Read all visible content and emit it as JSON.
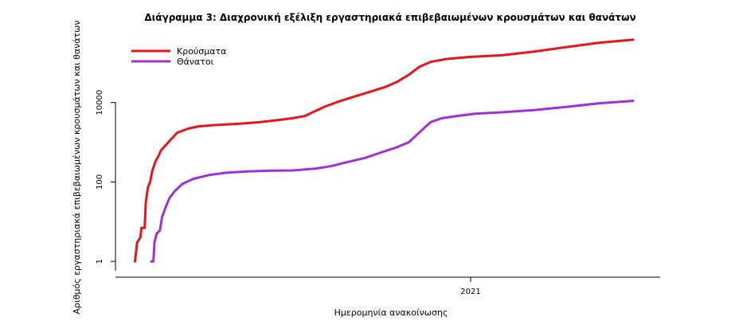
{
  "chart_data": {
    "type": "line",
    "title": "Διάγραμμα 3: Διαχρονική εξέλιξη εργαστηριακά επιβεβαιωμένων κρουσμάτων και θανάτων",
    "xlabel": "Ημερομηνία ανακοίνωσης",
    "ylabel": "Αριθμός εργαστηριακά επιβεβαιωμένων κρουσμάτων και θανάτων",
    "y_scale": "log10",
    "ylim": [
      0.4,
      600000
    ],
    "xlim": [
      "2020-02-08",
      "2021-06-25"
    ],
    "x_ticks": [
      {
        "date": "2021-01-01",
        "label": "2021"
      }
    ],
    "y_ticks": [
      {
        "value": 1,
        "label": "1"
      },
      {
        "value": 100,
        "label": "100"
      },
      {
        "value": 10000,
        "label": "10000"
      }
    ],
    "grid": false,
    "legend_position": "top-left",
    "series": [
      {
        "name": "Κρούσματα",
        "color": "#e8141b",
        "points": [
          [
            "2020-02-26",
            1
          ],
          [
            "2020-02-28",
            3
          ],
          [
            "2020-03-02",
            4
          ],
          [
            "2020-03-03",
            7
          ],
          [
            "2020-03-06",
            7
          ],
          [
            "2020-03-07",
            31
          ],
          [
            "2020-03-09",
            73
          ],
          [
            "2020-03-11",
            99
          ],
          [
            "2020-03-13",
            190
          ],
          [
            "2020-03-16",
            331
          ],
          [
            "2020-03-19",
            464
          ],
          [
            "2020-03-21",
            624
          ],
          [
            "2020-03-25",
            821
          ],
          [
            "2020-03-30",
            1156
          ],
          [
            "2020-04-05",
            1735
          ],
          [
            "2020-04-15",
            2192
          ],
          [
            "2020-04-25",
            2517
          ],
          [
            "2020-05-10",
            2710
          ],
          [
            "2020-06-01",
            2918
          ],
          [
            "2020-06-20",
            3200
          ],
          [
            "2020-07-10",
            3700
          ],
          [
            "2020-07-20",
            4000
          ],
          [
            "2020-08-01",
            4587
          ],
          [
            "2020-08-10",
            6000
          ],
          [
            "2020-08-20",
            8000
          ],
          [
            "2020-09-01",
            10500
          ],
          [
            "2020-09-15",
            14000
          ],
          [
            "2020-10-01",
            19000
          ],
          [
            "2020-10-15",
            25000
          ],
          [
            "2020-10-25",
            33000
          ],
          [
            "2020-11-05",
            50000
          ],
          [
            "2020-11-15",
            80000
          ],
          [
            "2020-11-25",
            105000
          ],
          [
            "2020-12-10",
            125000
          ],
          [
            "2020-12-31",
            140000
          ],
          [
            "2021-01-31",
            156000
          ],
          [
            "2021-02-28",
            190000
          ],
          [
            "2021-03-31",
            250000
          ],
          [
            "2021-04-30",
            320000
          ],
          [
            "2021-05-31",
            380000
          ]
        ]
      },
      {
        "name": "Θάνατοι",
        "color": "#9e31d6",
        "points": [
          [
            "2020-03-12",
            1
          ],
          [
            "2020-03-14",
            1
          ],
          [
            "2020-03-15",
            3
          ],
          [
            "2020-03-17",
            5
          ],
          [
            "2020-03-20",
            6
          ],
          [
            "2020-03-22",
            13
          ],
          [
            "2020-03-25",
            22
          ],
          [
            "2020-03-29",
            40
          ],
          [
            "2020-04-03",
            60
          ],
          [
            "2020-04-10",
            90
          ],
          [
            "2020-04-20",
            120
          ],
          [
            "2020-05-05",
            150
          ],
          [
            "2020-05-20",
            170
          ],
          [
            "2020-06-10",
            185
          ],
          [
            "2020-07-01",
            192
          ],
          [
            "2020-07-20",
            195
          ],
          [
            "2020-08-10",
            215
          ],
          [
            "2020-08-25",
            250
          ],
          [
            "2020-09-10",
            320
          ],
          [
            "2020-09-25",
            400
          ],
          [
            "2020-10-10",
            550
          ],
          [
            "2020-10-25",
            750
          ],
          [
            "2020-11-05",
            1000
          ],
          [
            "2020-11-15",
            1800
          ],
          [
            "2020-11-25",
            3200
          ],
          [
            "2020-12-05",
            4000
          ],
          [
            "2020-12-20",
            4600
          ],
          [
            "2021-01-05",
            5200
          ],
          [
            "2021-01-31",
            5700
          ],
          [
            "2021-02-28",
            6400
          ],
          [
            "2021-03-31",
            7800
          ],
          [
            "2021-04-30",
            9600
          ],
          [
            "2021-05-31",
            11000
          ]
        ]
      }
    ]
  }
}
